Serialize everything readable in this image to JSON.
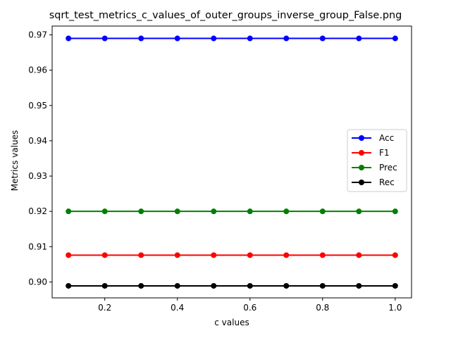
{
  "chart_data": {
    "type": "line",
    "title": "sqrt_test_metrics_c_values_of_outer_groups_inverse_group_False.png",
    "xlabel": "c values",
    "ylabel": "Metrics values",
    "x": [
      0.1,
      0.2,
      0.3,
      0.4,
      0.5,
      0.6,
      0.7,
      0.8,
      0.9,
      1.0
    ],
    "xlim": [
      0.055,
      1.045
    ],
    "ylim": [
      0.8955,
      0.9725
    ],
    "xticks": [
      "0.2",
      "0.4",
      "0.6",
      "0.8",
      "1.0"
    ],
    "xtick_values": [
      0.2,
      0.4,
      0.6,
      0.8,
      1.0
    ],
    "yticks": [
      "0.90",
      "0.91",
      "0.92",
      "0.93",
      "0.94",
      "0.95",
      "0.96",
      "0.97"
    ],
    "ytick_values": [
      0.9,
      0.91,
      0.92,
      0.93,
      0.94,
      0.95,
      0.96,
      0.97
    ],
    "grid": false,
    "legend_position": "center-right",
    "series": [
      {
        "name": "Acc",
        "color": "#0000ff",
        "values": [
          0.969,
          0.969,
          0.969,
          0.969,
          0.969,
          0.969,
          0.969,
          0.969,
          0.969,
          0.969
        ]
      },
      {
        "name": "F1",
        "color": "#ff0000",
        "values": [
          0.9076,
          0.9076,
          0.9076,
          0.9076,
          0.9076,
          0.9076,
          0.9076,
          0.9076,
          0.9076,
          0.9076
        ]
      },
      {
        "name": "Prec",
        "color": "#008000",
        "values": [
          0.92,
          0.92,
          0.92,
          0.92,
          0.92,
          0.92,
          0.92,
          0.92,
          0.92,
          0.92
        ]
      },
      {
        "name": "Rec",
        "color": "#000000",
        "values": [
          0.8989,
          0.8989,
          0.8989,
          0.8989,
          0.8989,
          0.8989,
          0.8989,
          0.8989,
          0.8989,
          0.8989
        ]
      }
    ]
  }
}
